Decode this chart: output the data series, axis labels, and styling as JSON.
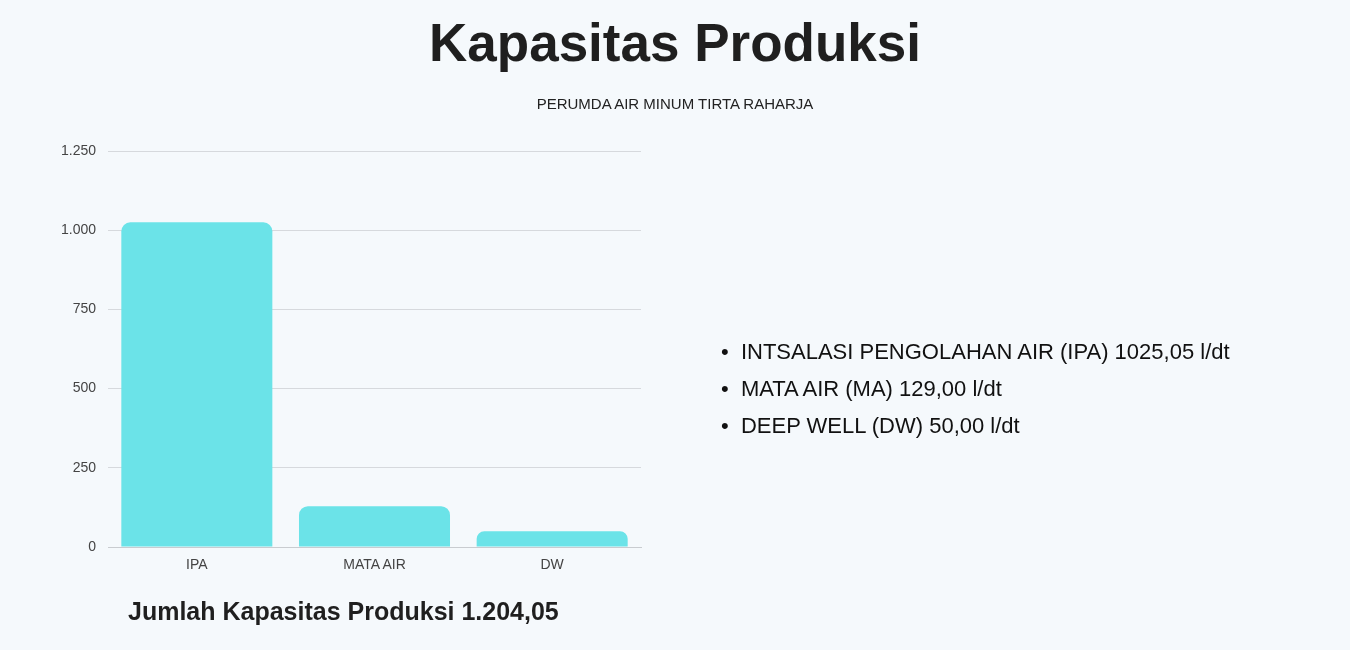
{
  "chart_data": {
    "type": "bar",
    "title": "Kapasitas Produksi",
    "subtitle": "PERUMDA AIR MINUM TIRTA RAHARJA",
    "categories": [
      "IPA",
      "MATA AIR",
      "DW"
    ],
    "values": [
      1025.05,
      129,
      50
    ],
    "color": "#6be3e8",
    "ylim": [
      0,
      1250
    ],
    "yticks": [
      0,
      250,
      500,
      750,
      {
        "value": 1000,
        "label": "1.000"
      },
      {
        "value": 1250,
        "label": "1.250"
      }
    ],
    "grid": "y",
    "annotations": [
      "•  INTSALASI PENGOLAHAN AIR (IPA) 1025,05 l/dt",
      "•  MATA AIR (MA) 129,00 l/dt",
      "•  DEEP WELL (DW) 50,00 l/dt",
      "Jumlah Kapasitas Produksi 1.204,05"
    ]
  }
}
